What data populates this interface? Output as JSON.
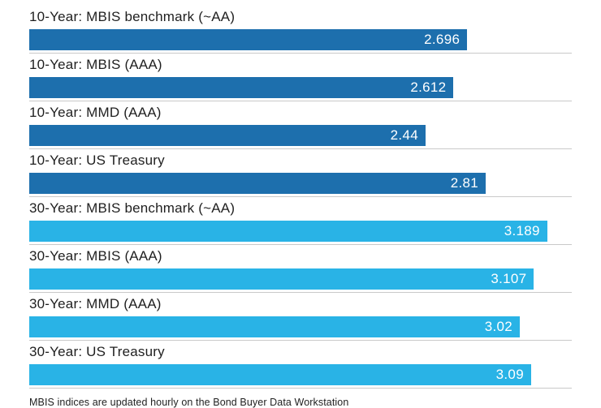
{
  "chart_data": {
    "type": "bar",
    "orientation": "horizontal",
    "title": "",
    "xlabel": "",
    "ylabel": "",
    "xlim": [
      0,
      3.34
    ],
    "grid": false,
    "legend": "none",
    "categories": [
      "10-Year: MBIS benchmark (~AA)",
      "10-Year: MBIS (AAA)",
      "10-Year: MMD (AAA)",
      "10-Year: US Treasury",
      "30-Year: MBIS benchmark (~AA)",
      "30-Year: MBIS (AAA)",
      "30-Year: MMD (AAA)",
      "30-Year: US Treasury"
    ],
    "values": [
      2.696,
      2.612,
      2.44,
      2.81,
      3.189,
      3.107,
      3.02,
      3.09
    ],
    "colors": {
      "dark": "#1d6fad",
      "light": "#29b3e6"
    },
    "rows": [
      {
        "label": "10-Year: MBIS benchmark (~AA)",
        "value": 2.696,
        "display": "2.696",
        "color": "dark"
      },
      {
        "label": "10-Year: MBIS (AAA)",
        "value": 2.612,
        "display": "2.612",
        "color": "dark"
      },
      {
        "label": "10-Year: MMD (AAA)",
        "value": 2.44,
        "display": "2.44",
        "color": "dark"
      },
      {
        "label": "10-Year: US Treasury",
        "value": 2.81,
        "display": "2.81",
        "color": "dark"
      },
      {
        "label": "30-Year: MBIS benchmark (~AA)",
        "value": 3.189,
        "display": "3.189",
        "color": "light"
      },
      {
        "label": "30-Year: MBIS (AAA)",
        "value": 3.107,
        "display": "3.107",
        "color": "light"
      },
      {
        "label": "30-Year: MMD (AAA)",
        "value": 3.02,
        "display": "3.02",
        "color": "light"
      },
      {
        "label": "30-Year: US Treasury",
        "value": 3.09,
        "display": "3.09",
        "color": "light"
      }
    ],
    "footnote": "MBIS indices are updated hourly on the Bond Buyer Data Workstation"
  }
}
